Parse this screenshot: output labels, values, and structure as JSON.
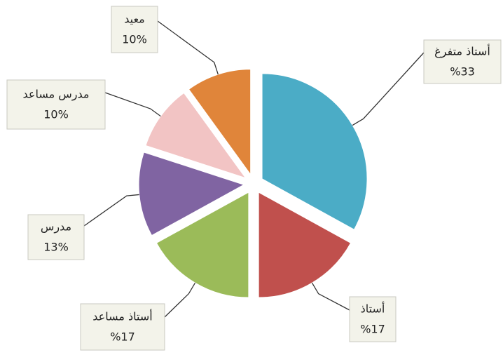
{
  "chart_data": {
    "type": "pie",
    "categories": [
      "أستاذ متفرغ",
      "أستاذ",
      "أستاذ مساعد",
      "مدرس",
      "مدرس مساعد",
      "معيد"
    ],
    "values": [
      33,
      17,
      17,
      13,
      10,
      10
    ],
    "value_labels": [
      "%33",
      "%17",
      "%17",
      "13%",
      "10%",
      "10%"
    ],
    "colors": [
      "#4bacc6",
      "#c0504d",
      "#9bbb59",
      "#8064a2",
      "#f2c4c4",
      "#e0853a"
    ]
  }
}
